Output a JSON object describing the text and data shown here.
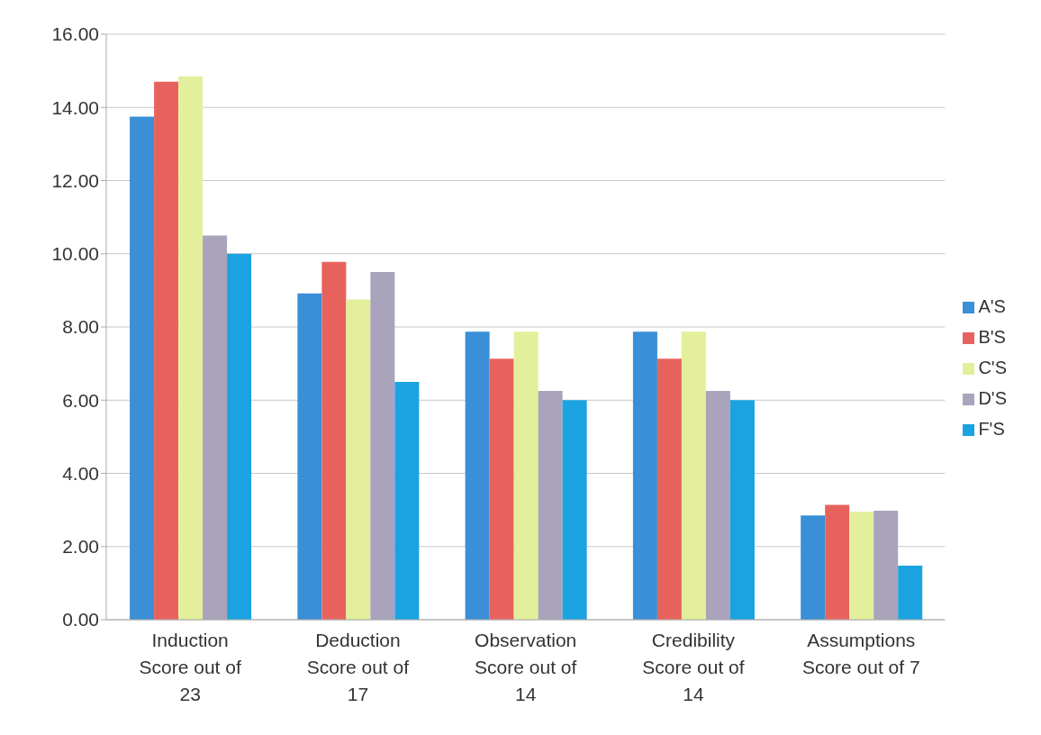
{
  "chart_data": {
    "type": "bar",
    "categories": [
      "Induction Score out of 23",
      "Deduction Score out of 17",
      "Observation Score out of 14",
      "Credibility Score out of 14",
      "Assumptions Score out of 7"
    ],
    "series": [
      {
        "name": "A'S",
        "color": "#3a8fd6",
        "values": [
          13.75,
          8.92,
          7.87,
          7.87,
          2.85
        ]
      },
      {
        "name": "B'S",
        "color": "#e8625d",
        "values": [
          14.7,
          9.78,
          7.13,
          7.13,
          3.14
        ]
      },
      {
        "name": "C'S",
        "color": "#e3ef9a",
        "values": [
          14.85,
          8.75,
          7.87,
          7.87,
          2.95
        ]
      },
      {
        "name": "D'S",
        "color": "#a9a4bb",
        "values": [
          10.5,
          9.5,
          6.25,
          6.25,
          2.98
        ]
      },
      {
        "name": "F'S",
        "color": "#1aa3e0",
        "values": [
          10.0,
          6.5,
          6.0,
          6.0,
          1.48
        ]
      }
    ],
    "ylim": [
      0,
      16
    ],
    "yticks": [
      {
        "value": 0,
        "label": "0.00"
      },
      {
        "value": 2,
        "label": "2.00"
      },
      {
        "value": 4,
        "label": "4.00"
      },
      {
        "value": 6,
        "label": "6.00"
      },
      {
        "value": 8,
        "label": "8.00"
      },
      {
        "value": 10,
        "label": "10.00"
      },
      {
        "value": 12,
        "label": "12.00"
      },
      {
        "value": 14,
        "label": "14.00"
      },
      {
        "value": 16,
        "label": "16.00"
      }
    ],
    "grid": "y",
    "legend": "right"
  }
}
